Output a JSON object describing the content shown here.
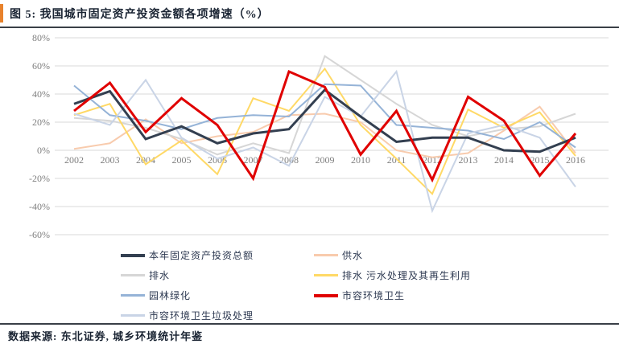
{
  "header": {
    "title": "图  5:  我国城市固定资产投资金额各项增速（%）",
    "accent_color": "#E8822C",
    "title_color": "#1A2433",
    "rule_color": "#3A3F47"
  },
  "source": {
    "text": "数据来源: 东北证券, 城乡环境统计年鉴",
    "color": "#1A2433"
  },
  "chart_data": {
    "type": "line",
    "title": "我国城市固定资产投资金额各项增速（%）",
    "x": [
      2002,
      2003,
      2004,
      2005,
      2006,
      2007,
      2008,
      2009,
      2010,
      2011,
      2012,
      2013,
      2014,
      2015,
      2016
    ],
    "xlabel": "",
    "ylabel": "",
    "ylim": [
      -60,
      80
    ],
    "ytick_step": 20,
    "ytick_suffix": "%",
    "grid": true,
    "grid_color": "#D9D9D9",
    "axis_label_color": "#7F7F7F",
    "legend_position": "bottom",
    "legend_text_color": "#2E3A52",
    "series": [
      {
        "name": "本年固定资产投资总额",
        "color": "#333F50",
        "width": 3,
        "values": [
          33,
          42,
          8,
          17,
          5,
          12,
          15,
          43,
          24,
          6,
          9,
          9,
          0,
          -1,
          9
        ]
      },
      {
        "name": "供水",
        "color": "#F8CBAD",
        "width": 2,
        "values": [
          1,
          5,
          22,
          5,
          10,
          13,
          25,
          26,
          20,
          0,
          -5,
          -2,
          14,
          31,
          -2
        ]
      },
      {
        "name": "排水",
        "color": "#D6D6D6",
        "width": 2,
        "values": [
          23,
          21,
          16,
          8,
          -3,
          5,
          -2,
          67,
          50,
          33,
          18,
          10,
          15,
          17,
          26
        ]
      },
      {
        "name": "排水 污水处理及其再生利用",
        "color": "#FFD966",
        "width": 2,
        "values": [
          25,
          33,
          -10,
          7,
          -17,
          37,
          28,
          58,
          18,
          -6,
          -31,
          29,
          16,
          27,
          -4
        ]
      },
      {
        "name": "园林绿化",
        "color": "#95B3D7",
        "width": 2,
        "values": [
          46,
          25,
          21,
          15,
          23,
          25,
          24,
          47,
          46,
          18,
          16,
          14,
          8,
          20,
          2
        ]
      },
      {
        "name": "市容环境卫生",
        "color": "#E00000",
        "width": 3,
        "values": [
          28,
          48,
          13,
          37,
          18,
          -20,
          56,
          45,
          -3,
          28,
          -21,
          38,
          21,
          -18,
          12
        ]
      },
      {
        "name": "市容环境卫生垃圾处理",
        "color": "#C9D4E6",
        "width": 2,
        "values": [
          26,
          18,
          50,
          9,
          -6,
          2,
          -11,
          38,
          24,
          56,
          -43,
          12,
          18,
          9,
          -26
        ]
      }
    ],
    "draw_order": [
      1,
      2,
      3,
      4,
      6,
      0,
      5
    ],
    "legend_columns": [
      [
        0,
        2,
        4,
        6
      ],
      [
        1,
        3,
        5
      ]
    ]
  }
}
